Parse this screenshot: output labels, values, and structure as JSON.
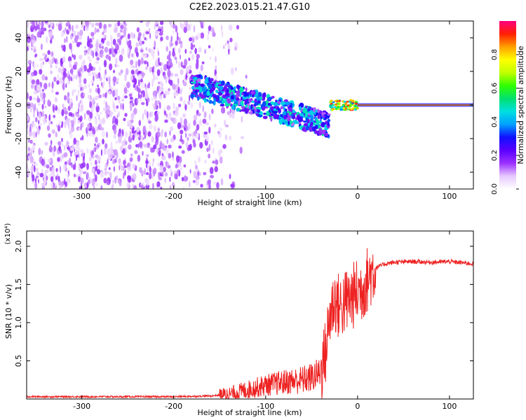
{
  "title": "C2E2.2023.015.21.47.G10",
  "chart_data": [
    {
      "type": "heatmap",
      "title": "C2E2.2023.015.21.47.G10",
      "xlabel": "Height of straight line (km)",
      "ylabel": "Frequency (Hz)",
      "xlim": [
        -360,
        126
      ],
      "ylim": [
        -50,
        50
      ],
      "xticks": [
        -300,
        -200,
        -100,
        0,
        100
      ],
      "yticks": [
        -40,
        -20,
        0,
        20,
        40
      ],
      "colorbar": {
        "label": "Normalized spectral amplitude",
        "range": [
          0,
          1
        ],
        "ticks": [
          0.0,
          0.2,
          0.4,
          0.6,
          0.8
        ],
        "colors": [
          "#ffffff",
          "#e6c8ff",
          "#9b30ff",
          "#5a00ff",
          "#1010ff",
          "#00a0ff",
          "#00e0e0",
          "#00e070",
          "#30ff00",
          "#c0ff00",
          "#ffff00",
          "#ffa000",
          "#ff2000",
          "#ff0080"
        ]
      },
      "regions": [
        {
          "name": "noise",
          "x_range": [
            -360,
            -140
          ],
          "freq_range": [
            -50,
            50
          ],
          "level": 0.12
        },
        {
          "name": "signal-trace",
          "x_range": [
            -180,
            -30
          ],
          "freq_center": [
            12,
            -12
          ],
          "level": 0.3
        },
        {
          "name": "carrier",
          "x_range": [
            0,
            126
          ],
          "freq": 0,
          "level": 0.9
        }
      ]
    },
    {
      "type": "line",
      "xlabel": "Height of straight line (km)",
      "ylabel": "SNR (10 * v/v)",
      "y_multiplier": "(x10⁴)",
      "xlim": [
        -360,
        126
      ],
      "ylim": [
        0,
        2.2
      ],
      "xticks": [
        -300,
        -200,
        -100,
        0,
        100
      ],
      "yticks": [
        0.5,
        1.0,
        1.5,
        2.0
      ],
      "ytick_labels": [
        "0.5",
        "1.0",
        "1.5",
        "2.0"
      ],
      "line_color": "#ee2222",
      "series": [
        {
          "x": [
            -360,
            -300,
            -250,
            -200,
            -160,
            -140,
            -120,
            -100,
            -80,
            -60,
            -50,
            -40,
            -35,
            -30,
            -25,
            -20,
            -15,
            -10,
            -5,
            0,
            5,
            10,
            15,
            20,
            30,
            40,
            60,
            80,
            100,
            126
          ],
          "values": [
            0.03,
            0.03,
            0.03,
            0.03,
            0.04,
            0.06,
            0.12,
            0.18,
            0.22,
            0.25,
            0.28,
            0.35,
            0.6,
            1.1,
            1.3,
            1.2,
            1.25,
            1.3,
            1.35,
            1.4,
            1.45,
            1.55,
            1.65,
            1.72,
            1.77,
            1.79,
            1.8,
            1.79,
            1.8,
            1.77
          ]
        }
      ]
    }
  ]
}
